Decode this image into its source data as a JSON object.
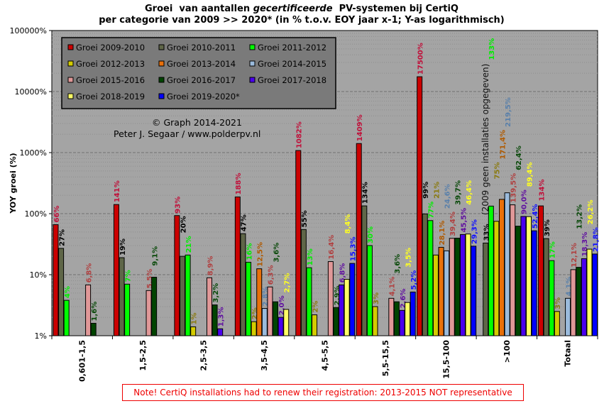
{
  "chart_data": {
    "type": "bar",
    "title_line1_prefix": "Groei  van aantallen ",
    "title_line1_italic": "gecertificeerde",
    "title_line1_suffix": "  PV-systemen bij CertiQ",
    "title_line2": "per categorie van 2009 >> 2020*  (in % t.o.v. EOY jaar x-1; Y-as logarithmisch)",
    "ylabel": "YOY groei (%)",
    "yscale": "log",
    "ylim": [
      1,
      100000
    ],
    "yticks": [
      "1%",
      "10%",
      "100%",
      "1000%",
      "10000%",
      "100000%"
    ],
    "legend_placement": "top-left",
    "categories": [
      "0,601-1,5",
      "1,5-2,5",
      "2,5-3,5",
      "3,5-4,5",
      "4,5-5,5",
      "5,5-15,5",
      "15,5-100",
      ">100",
      "Totaal"
    ],
    "series": [
      {
        "name": "Groei 2009-2010",
        "color": "#cc0000",
        "label_color": "#c0103a",
        "values": [
          66,
          141,
          93,
          188,
          1082,
          1409,
          17500,
          null,
          134
        ],
        "labels": [
          "66%",
          "141%",
          "93%",
          "188%",
          "1082%",
          "1409%",
          "17500%",
          null,
          "134%"
        ]
      },
      {
        "name": "Groei 2010-2011",
        "color": "#5f6648",
        "label_color": "#000000",
        "values": [
          27,
          19,
          20,
          47,
          55,
          134,
          99,
          33,
          39
        ],
        "labels": [
          "27%",
          "19%",
          "20%",
          "47%",
          "55%",
          "134%",
          "99%",
          "33%",
          "39%"
        ]
      },
      {
        "name": "Groei 2011-2012",
        "color": "#00ff00",
        "label_color": "#00ee00",
        "values": [
          3.8,
          7,
          21,
          16,
          13,
          30,
          77,
          133,
          17
        ],
        "labels": [
          "4%",
          "7%",
          "21%",
          "16%",
          "13%",
          "30%",
          "77%",
          "133%",
          "17%"
        ]
      },
      {
        "name": "Groei 2012-2013",
        "color": "#d4cc00",
        "label_color": "#8a7a10",
        "values": [
          null,
          null,
          1.4,
          1.7,
          2.2,
          3,
          21,
          75,
          2.5
        ],
        "labels": [
          null,
          null,
          "1%",
          "2%",
          "2%",
          "3%",
          "21%",
          "75%",
          "3%"
        ]
      },
      {
        "name": "Groei 2013-2014",
        "color": "#e8700a",
        "label_color": "#b05a00",
        "values": [
          null,
          null,
          null,
          12.5,
          null,
          null,
          28.1,
          171.4,
          null
        ],
        "labels": [
          null,
          null,
          null,
          "12,5%",
          null,
          null,
          "28,1%",
          "171,4%",
          null
        ]
      },
      {
        "name": "Groei 2014-2015",
        "color": "#9bbbdc",
        "label_color": "#5a80aa",
        "values": [
          null,
          null,
          null,
          2.8,
          null,
          null,
          24.6,
          219.5,
          4.1
        ],
        "labels": [
          null,
          null,
          null,
          "2,8%",
          null,
          null,
          "24,6%",
          "219,5%",
          "4,1%"
        ]
      },
      {
        "name": "Groei 2015-2016",
        "color": "#e09898",
        "label_color": "#b04040",
        "values": [
          6.8,
          5.5,
          8.9,
          6.3,
          16.4,
          4.1,
          39.4,
          139.5,
          12.1
        ],
        "labels": [
          "6,8%",
          "5,5%",
          "8,9%",
          "6,3%",
          "16,4%",
          "4,1%",
          "39,4%",
          "139,5%",
          "12,1%"
        ]
      },
      {
        "name": "Groei 2016-2017",
        "color": "#004400",
        "label_color": "#0a4a0a",
        "values": [
          1.6,
          9.1,
          3.2,
          3.6,
          2.9,
          3.6,
          39.7,
          62.4,
          13.2
        ],
        "labels": [
          "1,6%",
          "9,1%",
          "3,2%",
          "3,6%",
          "2,9%",
          "3,6%",
          "39,7%",
          "62,4%",
          "13,2%"
        ]
      },
      {
        "name": "Groei 2017-2018",
        "color": "#4a00ee",
        "label_color": "#6010a0",
        "values": [
          null,
          null,
          1.3,
          2.0,
          6.8,
          2.6,
          45.5,
          90.0,
          18.3
        ],
        "labels": [
          null,
          null,
          "1,3%",
          "2,0%",
          "6,8%",
          "2,6%",
          "45,5%",
          "90,0%",
          "18,3%"
        ]
      },
      {
        "name": "Groei 2018-2019",
        "color": "#ffff66",
        "label_color": "#ffff20",
        "values": [
          null,
          null,
          null,
          2.7,
          8.4,
          3.5,
          46.4,
          89.4,
          26.2
        ],
        "labels": [
          null,
          null,
          null,
          "2,7%",
          "8,4%",
          "3,5%",
          "46,4%",
          "89,4%",
          "26,2%"
        ]
      },
      {
        "name": "Groei 2019-2020*",
        "color": "#0000ff",
        "label_color": "#1010ff",
        "values": [
          null,
          null,
          null,
          null,
          15.3,
          5.2,
          29.3,
          52.4,
          21.8
        ],
        "labels": [
          null,
          null,
          null,
          null,
          "15,3%",
          "5,2%",
          "29,3%",
          "52,4%",
          "21,8%"
        ]
      }
    ],
    "annotations": {
      "copyright": "© Graph  2014-2021",
      "author": "Peter J. Segaar / www.polderpv.nl",
      "no_data_note": "(2009 geen installaties opgegeven)"
    }
  },
  "footer_note": "Note! CertiQ installations  had to renew their registration: 2013-2015 NOT representative"
}
